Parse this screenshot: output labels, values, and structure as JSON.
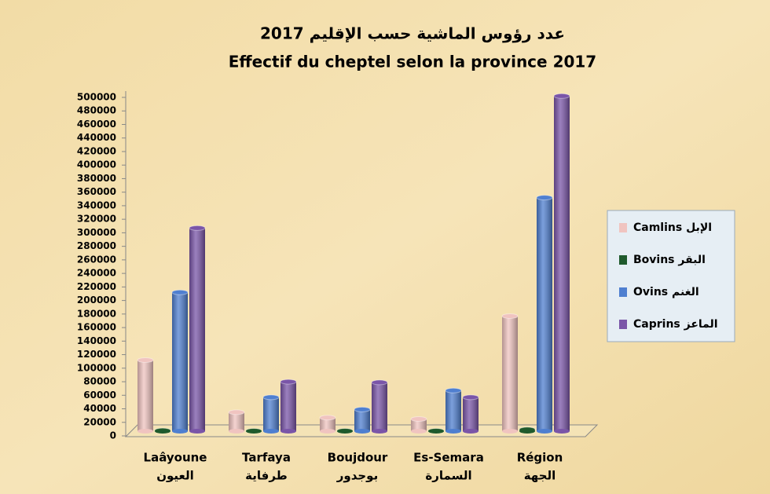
{
  "chart_data": {
    "type": "bar",
    "title": "عدد رؤوس الماشية حسب الإقليم 2017",
    "subtitle": "Effectif du cheptel selon la province 2017",
    "categories": [
      "Laâyoune",
      "Tarfaya",
      "Boujdour",
      "Es-Semara",
      "Région"
    ],
    "categories_ar": [
      "العيون",
      "طرفاية",
      "بوجدور",
      "السمارة",
      "الجهة"
    ],
    "series": [
      {
        "name": "Camlins الإبل",
        "color": "#f0c4c0",
        "values": [
          105000,
          28000,
          20000,
          18000,
          170000
        ]
      },
      {
        "name": "Bovins البقر",
        "color": "#1f5a2c",
        "values": [
          1000,
          500,
          500,
          500,
          2500
        ]
      },
      {
        "name": "Ovins الغنم",
        "color": "#4f7fd0",
        "values": [
          205000,
          50000,
          32000,
          60000,
          345000
        ]
      },
      {
        "name": "Caprins الماعز",
        "color": "#7a55a8",
        "values": [
          300000,
          73000,
          72000,
          50000,
          495000
        ]
      }
    ],
    "ylim": [
      0,
      500000
    ],
    "yticks": [
      0,
      20000,
      40000,
      60000,
      80000,
      100000,
      120000,
      140000,
      160000,
      180000,
      200000,
      220000,
      240000,
      260000,
      280000,
      300000,
      320000,
      340000,
      360000,
      380000,
      400000,
      420000,
      440000,
      460000,
      480000,
      500000
    ],
    "legend": "right"
  }
}
